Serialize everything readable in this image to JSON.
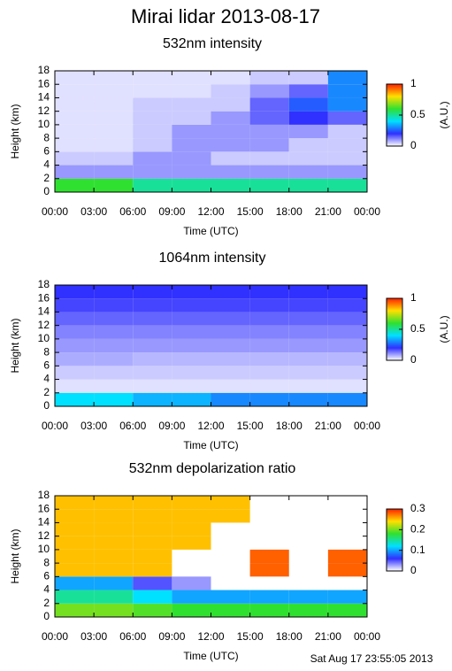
{
  "title": "Mirai lidar 2013-08-17",
  "timestamp": "Sat Aug 17 23:55:05 2013",
  "chart_data": [
    {
      "type": "heatmap",
      "title": "532nm intensity",
      "xlabel": "Time (UTC)",
      "ylabel": "Height (km)",
      "colorbar_label": "(A.U.)",
      "xlim": [
        0,
        24
      ],
      "ylim": [
        0,
        18
      ],
      "xticks": [
        {
          "value": 0,
          "label": "00:00"
        },
        {
          "value": 3,
          "label": "03:00"
        },
        {
          "value": 6,
          "label": "06:00"
        },
        {
          "value": 9,
          "label": "09:00"
        },
        {
          "value": 12,
          "label": "12:00"
        },
        {
          "value": 15,
          "label": "15:00"
        },
        {
          "value": 18,
          "label": "18:00"
        },
        {
          "value": 21,
          "label": "21:00"
        },
        {
          "value": 24,
          "label": "00:00"
        }
      ],
      "yticks": [
        0,
        2,
        4,
        6,
        8,
        10,
        12,
        14,
        16,
        18
      ],
      "clim": [
        0,
        1
      ],
      "cticks": [
        0,
        0.5,
        1
      ],
      "xbins": [
        0,
        3,
        6,
        9,
        12,
        15,
        18,
        21,
        24
      ],
      "ybins": [
        0,
        2,
        4,
        6,
        8,
        10,
        12,
        14,
        16,
        18
      ],
      "z": [
        [
          0.6,
          0.6,
          0.5,
          0.5,
          0.5,
          0.5,
          0.5,
          0.5
        ],
        [
          0.1,
          0.1,
          0.1,
          0.1,
          0.1,
          0.1,
          0.1,
          0.1
        ],
        [
          0.05,
          0.05,
          0.1,
          0.1,
          0.05,
          0.05,
          0.05,
          0.05
        ],
        [
          0.03,
          0.03,
          0.05,
          0.1,
          0.1,
          0.1,
          0.05,
          0.05
        ],
        [
          0.03,
          0.03,
          0.05,
          0.1,
          0.1,
          0.1,
          0.1,
          0.05
        ],
        [
          0.03,
          0.03,
          0.05,
          0.05,
          0.1,
          0.15,
          0.2,
          0.15
        ],
        [
          0.03,
          0.03,
          0.05,
          0.05,
          0.05,
          0.15,
          0.25,
          0.3
        ],
        [
          0.03,
          0.03,
          0.03,
          0.03,
          0.05,
          0.1,
          0.15,
          0.3
        ],
        [
          0.03,
          0.03,
          0.03,
          0.03,
          0.03,
          0.05,
          0.05,
          0.3
        ]
      ]
    },
    {
      "type": "heatmap",
      "title": "1064nm intensity",
      "xlabel": "Time (UTC)",
      "ylabel": "Height (km)",
      "colorbar_label": "(A.U.)",
      "xlim": [
        0,
        24
      ],
      "ylim": [
        0,
        18
      ],
      "xticks": [
        {
          "value": 0,
          "label": "00:00"
        },
        {
          "value": 3,
          "label": "03:00"
        },
        {
          "value": 6,
          "label": "06:00"
        },
        {
          "value": 9,
          "label": "09:00"
        },
        {
          "value": 12,
          "label": "12:00"
        },
        {
          "value": 15,
          "label": "15:00"
        },
        {
          "value": 18,
          "label": "18:00"
        },
        {
          "value": 21,
          "label": "21:00"
        },
        {
          "value": 24,
          "label": "00:00"
        }
      ],
      "yticks": [
        0,
        2,
        4,
        6,
        8,
        10,
        12,
        14,
        16,
        18
      ],
      "clim": [
        0,
        1
      ],
      "cticks": [
        0,
        0.5,
        1
      ],
      "xbins": [
        0,
        3,
        6,
        9,
        12,
        15,
        18,
        21,
        24
      ],
      "ybins": [
        0,
        2,
        4,
        6,
        8,
        10,
        12,
        14,
        16,
        18
      ],
      "z": [
        [
          0.4,
          0.4,
          0.35,
          0.35,
          0.3,
          0.3,
          0.3,
          0.3
        ],
        [
          0.03,
          0.03,
          0.03,
          0.03,
          0.03,
          0.03,
          0.03,
          0.03
        ],
        [
          0.05,
          0.05,
          0.05,
          0.05,
          0.05,
          0.05,
          0.05,
          0.05
        ],
        [
          0.08,
          0.08,
          0.07,
          0.07,
          0.07,
          0.07,
          0.07,
          0.07
        ],
        [
          0.1,
          0.1,
          0.1,
          0.1,
          0.1,
          0.1,
          0.1,
          0.1
        ],
        [
          0.12,
          0.12,
          0.12,
          0.12,
          0.12,
          0.12,
          0.12,
          0.12
        ],
        [
          0.15,
          0.15,
          0.15,
          0.15,
          0.15,
          0.15,
          0.15,
          0.15
        ],
        [
          0.18,
          0.18,
          0.18,
          0.18,
          0.18,
          0.18,
          0.18,
          0.18
        ],
        [
          0.2,
          0.2,
          0.2,
          0.2,
          0.2,
          0.2,
          0.2,
          0.2
        ]
      ]
    },
    {
      "type": "heatmap",
      "title": "532nm depolarization ratio",
      "xlabel": "Time (UTC)",
      "ylabel": "Height (km)",
      "xlim": [
        0,
        24
      ],
      "ylim": [
        0,
        18
      ],
      "xticks": [
        {
          "value": 0,
          "label": "00:00"
        },
        {
          "value": 3,
          "label": "03:00"
        },
        {
          "value": 6,
          "label": "06:00"
        },
        {
          "value": 9,
          "label": "09:00"
        },
        {
          "value": 12,
          "label": "12:00"
        },
        {
          "value": 15,
          "label": "15:00"
        },
        {
          "value": 18,
          "label": "18:00"
        },
        {
          "value": 21,
          "label": "21:00"
        },
        {
          "value": 24,
          "label": "00:00"
        }
      ],
      "yticks": [
        0,
        2,
        4,
        6,
        8,
        10,
        12,
        14,
        16,
        18
      ],
      "clim": [
        0,
        0.3
      ],
      "cticks": [
        0,
        0.1,
        0.2,
        0.3
      ],
      "xbins": [
        0,
        3,
        6,
        9,
        12,
        15,
        18,
        21,
        24
      ],
      "ybins": [
        0,
        2,
        4,
        6,
        8,
        10,
        12,
        14,
        16,
        18
      ],
      "z": [
        [
          0.2,
          0.2,
          0.19,
          0.18,
          0.18,
          0.18,
          0.18,
          0.18
        ],
        [
          0.15,
          0.15,
          0.12,
          0.1,
          0.1,
          0.1,
          0.1,
          0.1
        ],
        [
          0.1,
          0.1,
          0.05,
          0.03,
          null,
          null,
          null,
          null
        ],
        [
          0.25,
          0.25,
          0.25,
          null,
          null,
          0.28,
          null,
          0.28
        ],
        [
          0.25,
          0.25,
          0.25,
          null,
          null,
          0.28,
          null,
          0.28
        ],
        [
          0.25,
          0.25,
          0.25,
          0.25,
          null,
          null,
          null,
          null
        ],
        [
          0.25,
          0.25,
          0.25,
          0.25,
          null,
          null,
          null,
          null
        ],
        [
          0.25,
          0.25,
          0.25,
          0.25,
          0.25,
          null,
          null,
          null
        ],
        [
          0.25,
          0.25,
          0.25,
          0.25,
          0.25,
          null,
          null,
          null
        ]
      ]
    }
  ]
}
